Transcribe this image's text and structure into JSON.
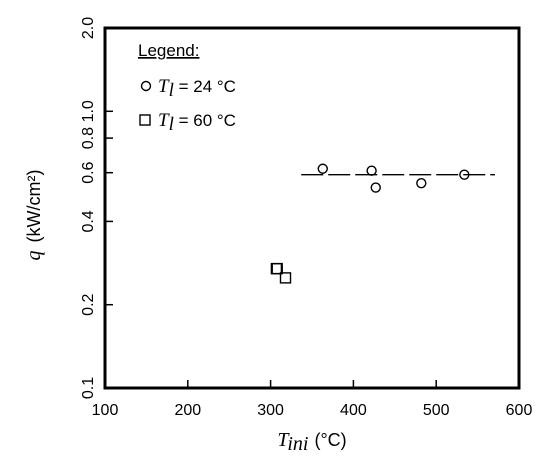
{
  "chart_data": {
    "type": "scatter",
    "xlabel_symbol": "T",
    "xlabel_subscript": "ini",
    "xlabel_unit": "(°C)",
    "ylabel_symbol": "q",
    "ylabel_unit": "(kW/cm²)",
    "xlim": [
      100,
      600
    ],
    "ylim": [
      0.1,
      2.0
    ],
    "yscale": "log",
    "x_ticks": [
      100,
      200,
      300,
      400,
      500,
      600
    ],
    "x_tick_labels": [
      "100",
      "200",
      "300",
      "400",
      "500",
      "600"
    ],
    "y_ticks": [
      0.1,
      0.2,
      0.4,
      0.6,
      0.8,
      1.0,
      2.0
    ],
    "y_tick_labels": [
      "0.1",
      "0.2",
      "0.4",
      "0.6",
      "0.8",
      "1.0",
      "2.0"
    ],
    "grid": false,
    "legend": {
      "title": "Legend:",
      "placement": "top-left",
      "entries": [
        {
          "marker": "circle",
          "symbol": "T",
          "subscript": "l",
          "text": " = 24 °C"
        },
        {
          "marker": "square",
          "symbol": "T",
          "subscript": "l",
          "text": " = 60 °C"
        }
      ]
    },
    "series": [
      {
        "marker": "circle",
        "label": "Tl = 24 °C",
        "x": [
          363,
          422,
          427,
          482,
          534
        ],
        "y": [
          0.62,
          0.61,
          0.53,
          0.55,
          0.59
        ]
      },
      {
        "marker": "square",
        "label": "Tl = 60 °C",
        "x": [
          307,
          308,
          318
        ],
        "y": [
          0.27,
          0.27,
          0.25
        ]
      }
    ],
    "reference_line": {
      "style": "dashed",
      "x": [
        337,
        571
      ],
      "y": 0.59
    }
  }
}
